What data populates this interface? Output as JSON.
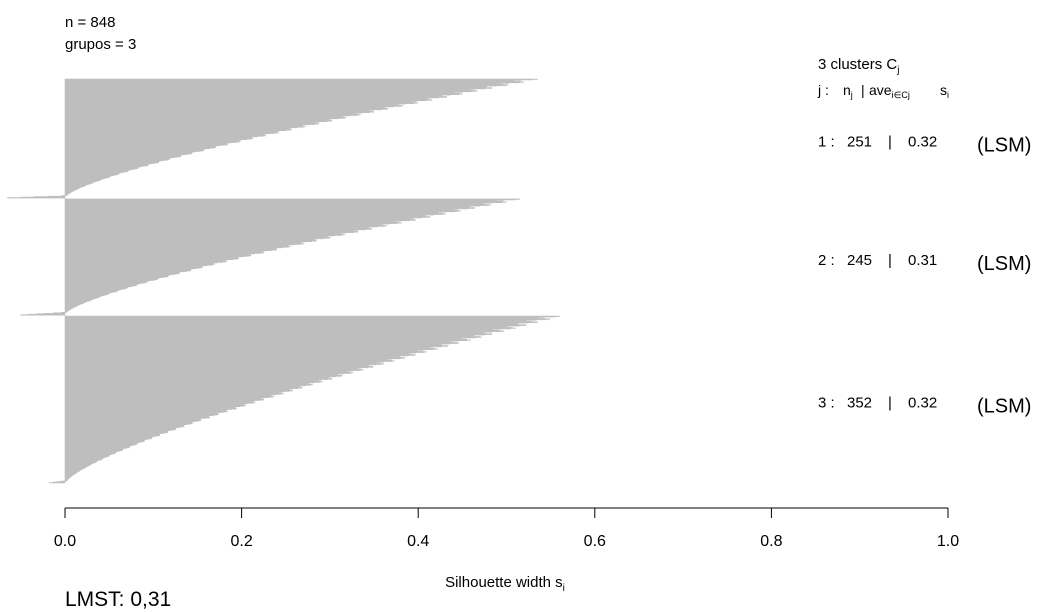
{
  "chart_data": {
    "type": "bar",
    "orientation": "horizontal",
    "title": "",
    "n_label": "n = 848",
    "groups_label": "grupos = 3",
    "legend_title_main": "3  clusters  C",
    "legend_title_sub": "j",
    "legend_header": {
      "j": "j :",
      "n": "n",
      "n_sub": "j",
      "sep": "|",
      "ave": "ave",
      "ave_sub": "i∈Cj",
      "s": "s",
      "s_sub": "i"
    },
    "clusters": [
      {
        "id": "1 :",
        "n": "251",
        "sep": "|",
        "ave": "0.32",
        "label": "(LSM)",
        "n_members": 251,
        "max_width": 0.535,
        "min_width": -0.065,
        "negatives": 5,
        "avg": 0.32
      },
      {
        "id": "2 :",
        "n": "245",
        "sep": "|",
        "ave": "0.31",
        "label": "(LSM)",
        "n_members": 245,
        "max_width": 0.515,
        "min_width": -0.05,
        "negatives": 6,
        "avg": 0.31
      },
      {
        "id": "3 :",
        "n": "352",
        "sep": "|",
        "ave": "0.32",
        "label": "(LSM)",
        "n_members": 352,
        "max_width": 0.56,
        "min_width": -0.018,
        "negatives": 4,
        "avg": 0.32
      }
    ],
    "xlim": [
      0,
      1
    ],
    "x_ticks": [
      "0.0",
      "0.2",
      "0.4",
      "0.6",
      "0.8",
      "1.0"
    ],
    "x_tick_values": [
      0,
      0.2,
      0.4,
      0.6,
      0.8,
      1.0
    ],
    "xlabel_main": "Silhouette width  s",
    "xlabel_sub": "i",
    "bar_color": "#bebebe",
    "footer": "LMST: 0,31"
  }
}
